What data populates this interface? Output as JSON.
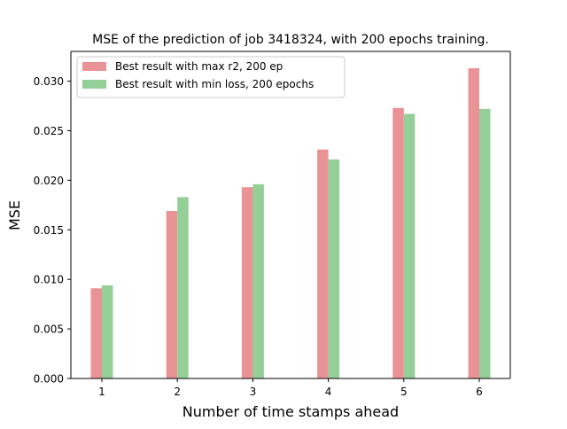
{
  "chart_data": {
    "type": "bar",
    "title": "MSE of the prediction of job 3418324, with 200 epochs training.",
    "xlabel": "Number of time stamps ahead",
    "ylabel": "MSE",
    "categories": [
      "1",
      "2",
      "3",
      "4",
      "5",
      "6"
    ],
    "ylim": [
      0,
      0.033
    ],
    "yticks": [
      "0.000",
      "0.005",
      "0.010",
      "0.015",
      "0.020",
      "0.025",
      "0.030"
    ],
    "ytick_values": [
      0,
      0.005,
      0.01,
      0.015,
      0.02,
      0.025,
      0.03
    ],
    "grid": false,
    "legend_position": "top-left",
    "series": [
      {
        "name": "Best result with max r2, 200 ep",
        "color": "#e99396",
        "values": [
          0.0091,
          0.0169,
          0.0193,
          0.0231,
          0.0273,
          0.0313
        ]
      },
      {
        "name": "Best result with min loss, 200 epochs",
        "color": "#94cf98",
        "values": [
          0.0094,
          0.0183,
          0.0196,
          0.0221,
          0.0267,
          0.0272
        ]
      }
    ]
  }
}
